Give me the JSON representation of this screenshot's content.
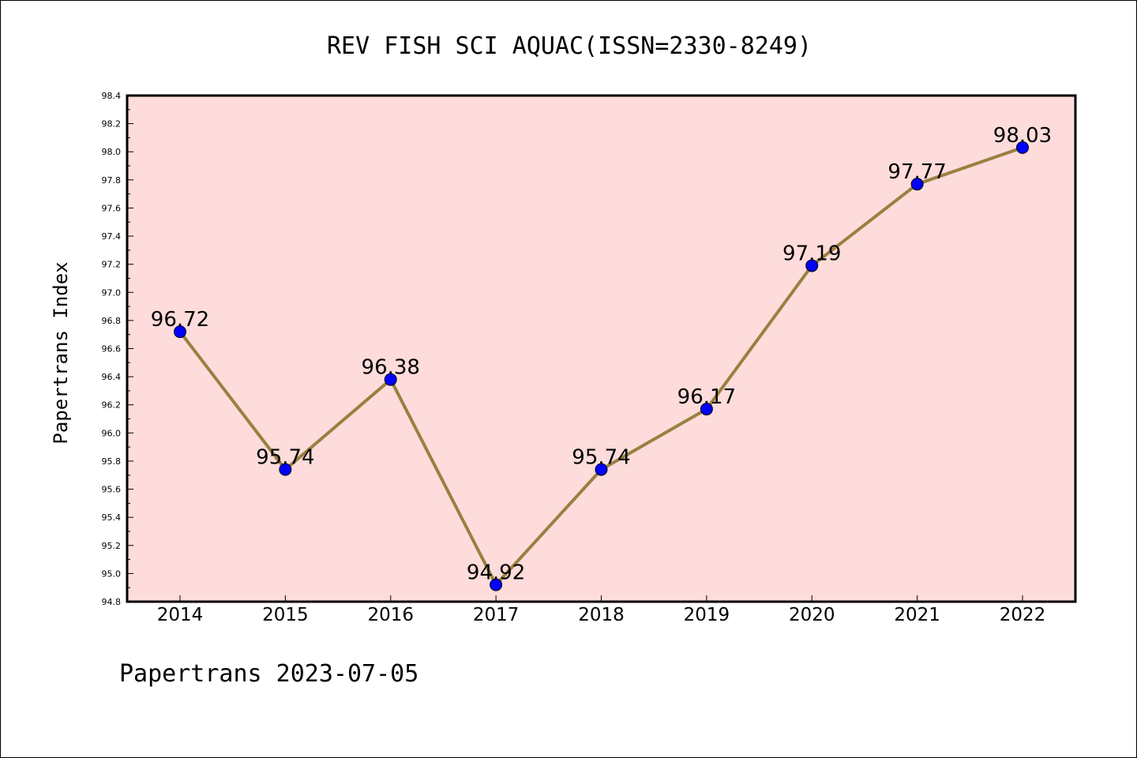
{
  "footer": "Papertrans 2023-07-05",
  "chart_data": {
    "type": "line",
    "title": "REV FISH SCI AQUAC(ISSN=2330-8249)",
    "ylabel": "Papertrans Index",
    "xlabel": "",
    "x": [
      "2014",
      "2015",
      "2016",
      "2017",
      "2018",
      "2019",
      "2020",
      "2021",
      "2022"
    ],
    "series": [
      {
        "values": [
          96.72,
          95.74,
          96.38,
          94.92,
          95.74,
          96.17,
          97.19,
          97.77,
          98.03
        ],
        "labels": [
          "96.72",
          "95.74",
          "96.38",
          "94.92",
          "95.74",
          "96.17",
          "97.19",
          "97.77",
          "98.03"
        ]
      }
    ],
    "ylim": [
      94.8,
      98.4
    ],
    "yticks": [
      "94.8",
      "95.0",
      "95.2",
      "95.4",
      "95.6",
      "95.8",
      "96.0",
      "96.2",
      "96.4",
      "96.6",
      "96.8",
      "97.0",
      "97.2",
      "97.4",
      "97.6",
      "97.8",
      "98.0",
      "98.2",
      "98.4"
    ],
    "grid": false,
    "legend": "none",
    "colors": {
      "line": "#9a8040",
      "marker": "#0000ff",
      "plot_background": "#fddcdb"
    }
  }
}
